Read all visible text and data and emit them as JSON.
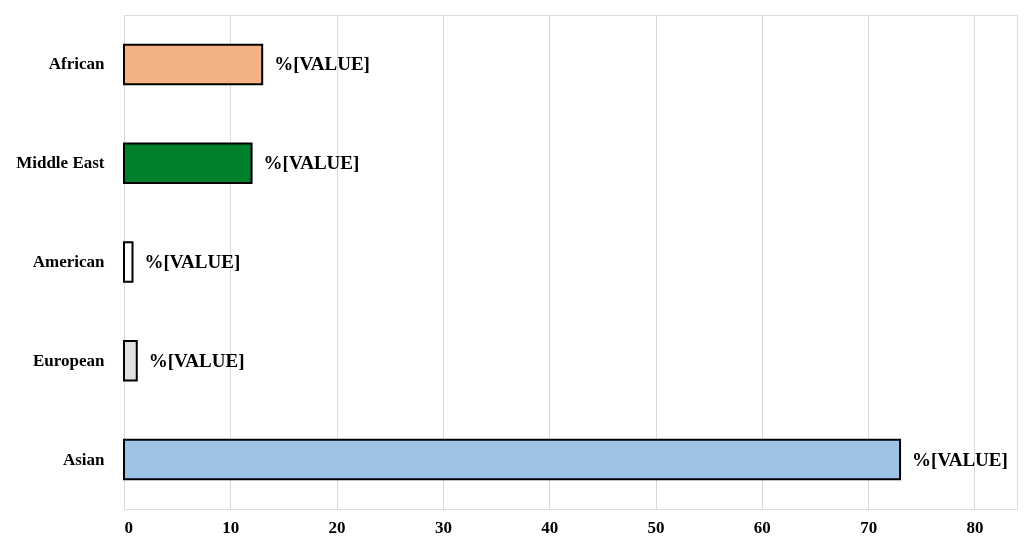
{
  "chart_data": {
    "type": "bar",
    "orientation": "horizontal",
    "categories": [
      "African",
      "Middle East",
      "American",
      "European",
      "Asian"
    ],
    "values": [
      13,
      12,
      0.8,
      1.2,
      73
    ],
    "colors": [
      "#f4b183",
      "#00802b",
      "#ffffff",
      "#e0e0e0",
      "#9dc3e6"
    ],
    "value_labels": [
      "%[VALUE]",
      "%[VALUE]",
      "%[VALUE]",
      "%[VALUE]",
      "%[VALUE]"
    ],
    "xlim": [
      0,
      84
    ],
    "xticks": [
      0,
      10,
      20,
      30,
      40,
      50,
      60,
      70,
      80
    ],
    "grid": "x"
  }
}
